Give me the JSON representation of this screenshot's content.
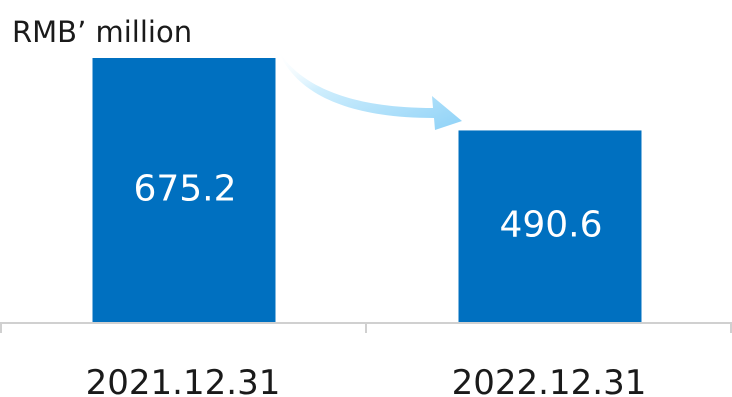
{
  "chart_data": {
    "type": "bar",
    "unit_label": "RMB’ million",
    "categories": [
      "2021.12.31",
      "2022.12.31"
    ],
    "values": [
      675.2,
      490.6
    ],
    "value_labels": [
      "675.2",
      "490.6"
    ],
    "ylim": [
      0,
      675.2
    ],
    "grid": false,
    "legend": "none",
    "bar_color": "#0070c0",
    "arrow_color": "#a9dcf8",
    "axis_color": "#d0d0d0",
    "annotation": "decreasing-arrow"
  }
}
